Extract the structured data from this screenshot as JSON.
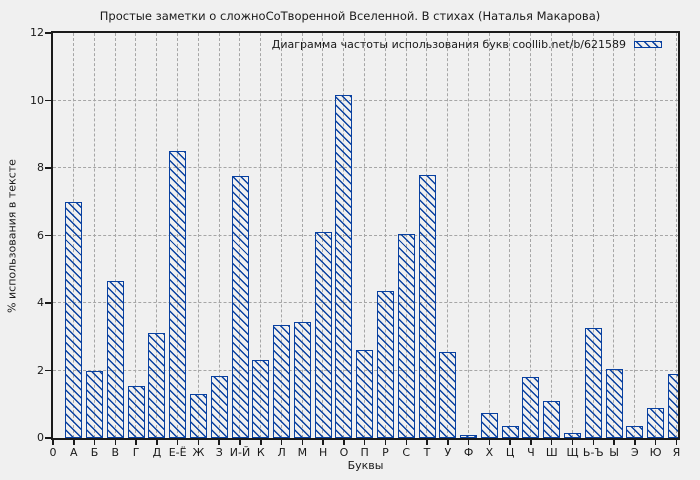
{
  "title": "Простые заметки о сложноСоТворенной Вселенной. В стихах (Наталья Макарова)",
  "chart_data": {
    "type": "bar",
    "title": "Простые заметки о сложноСоТворенной Вселенной. В стихах (Наталья Макарова)",
    "legend": "Диаграмма частоты использования букв coollib.net/b/621589",
    "legend_position": "top-right",
    "xlabel": "Буквы",
    "ylabel": "% использования в тексте",
    "origin_label": "0",
    "ylim": [
      0,
      12
    ],
    "yticks": [
      0,
      2,
      4,
      6,
      8,
      10,
      12
    ],
    "grid": true,
    "grid_style": "dashed",
    "categories": [
      "А",
      "Б",
      "В",
      "Г",
      "Д",
      "Е-Ё",
      "Ж",
      "З",
      "И-Й",
      "К",
      "Л",
      "М",
      "Н",
      "О",
      "П",
      "Р",
      "С",
      "Т",
      "У",
      "Ф",
      "Х",
      "Ц",
      "Ч",
      "Ш",
      "Щ",
      "Ь-Ъ",
      "Ы",
      "Э",
      "Ю",
      "Я"
    ],
    "values": [
      7.0,
      2.0,
      4.65,
      1.55,
      3.1,
      8.5,
      1.3,
      1.85,
      7.75,
      2.3,
      3.35,
      3.45,
      6.1,
      10.15,
      2.6,
      4.35,
      6.05,
      7.8,
      2.55,
      0.1,
      0.75,
      0.35,
      1.8,
      1.1,
      0.15,
      3.25,
      2.05,
      0.35,
      0.9,
      1.9
    ],
    "colors": {
      "bar_edge": "#0840a0",
      "background": "#f0f0f0",
      "grid": "#a6a6a6",
      "axis": "#1a1a1a"
    }
  }
}
